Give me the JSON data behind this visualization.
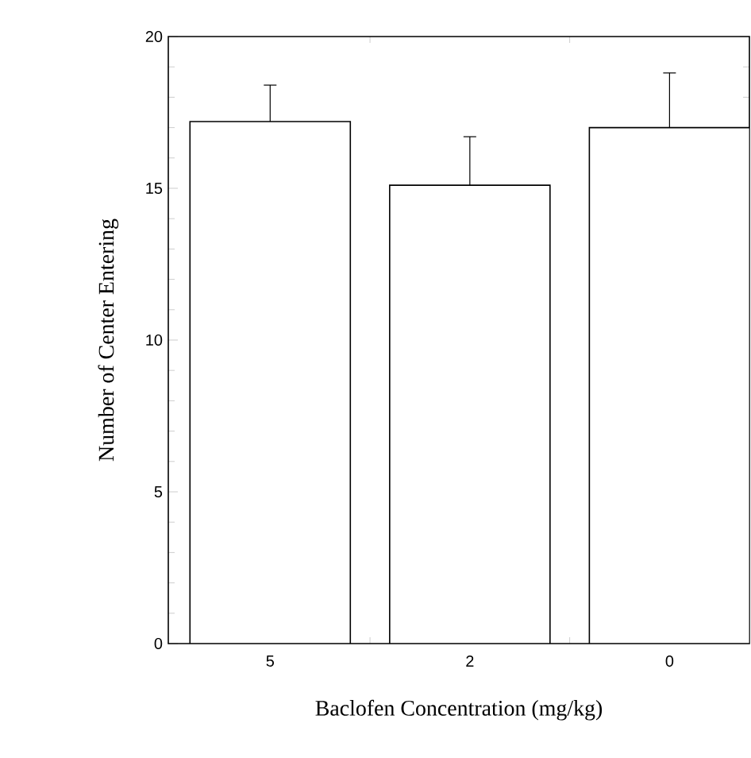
{
  "chart_data": {
    "type": "bar",
    "xlabel": "Baclofen Concentration (mg/kg)",
    "ylabel": "Number of Center Entering",
    "categories": [
      "5",
      "2",
      "0"
    ],
    "values": [
      17.2,
      15.1,
      17.0
    ],
    "errors": [
      [
        17.2,
        18.4
      ],
      [
        15.1,
        16.7
      ],
      [
        17.0,
        18.8
      ]
    ],
    "color": "#ffffff",
    "ylim": [
      0,
      20
    ],
    "yticks": [
      0,
      5,
      10,
      15,
      20
    ],
    "grid": false
  }
}
